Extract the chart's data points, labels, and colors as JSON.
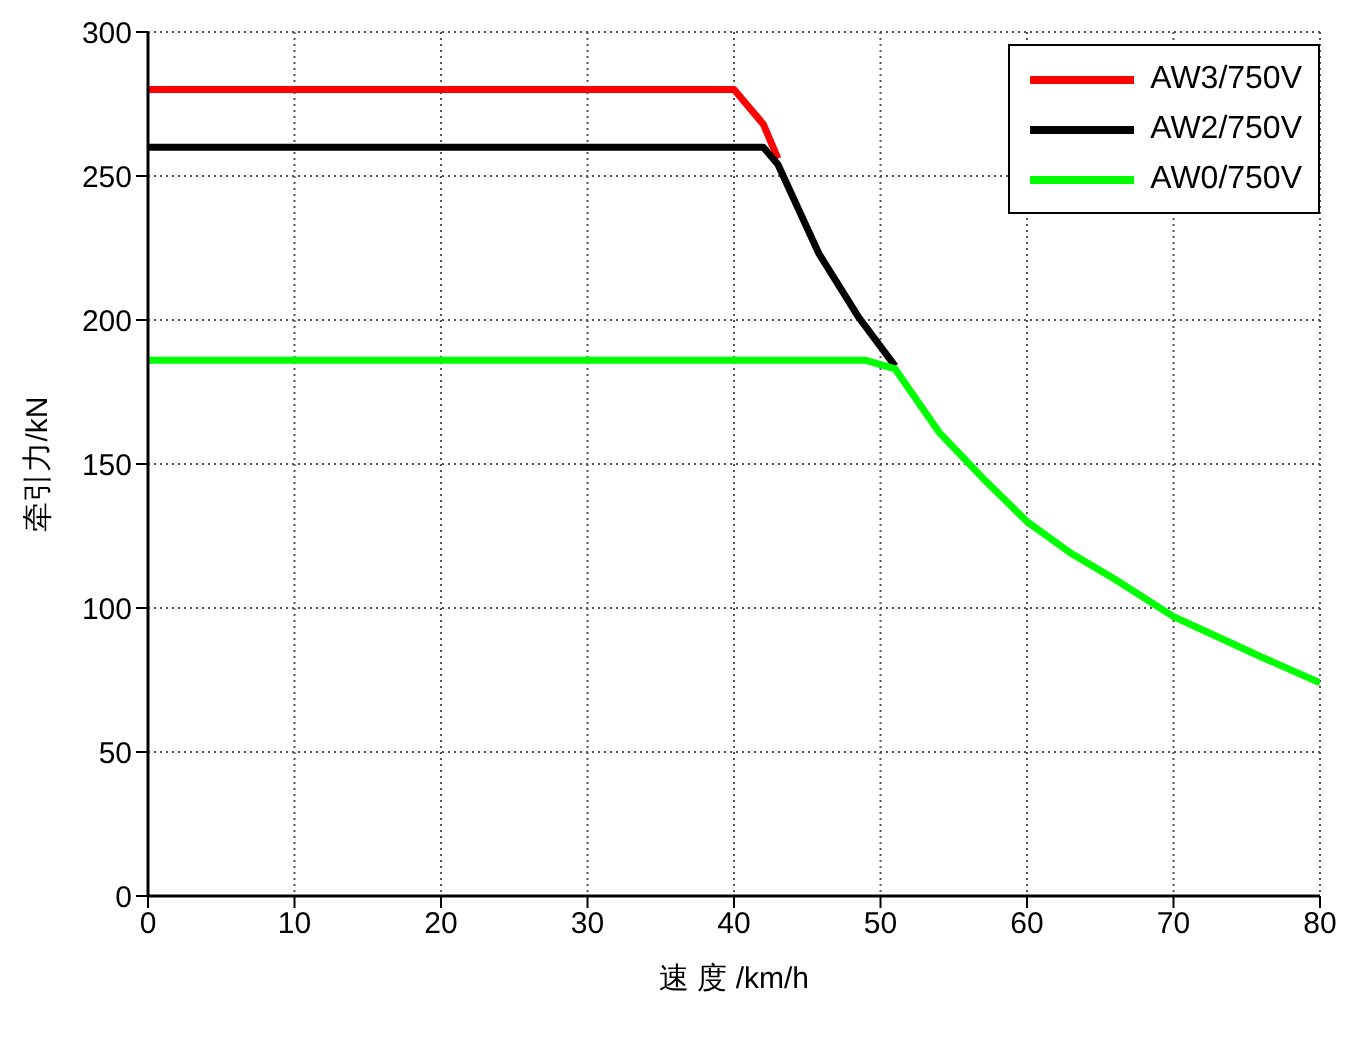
{
  "chart_data": {
    "type": "line",
    "xlabel": "速 度 /km/h",
    "ylabel": "牵引力/kN",
    "xlim": [
      0,
      80
    ],
    "xticks": [
      0,
      10,
      20,
      30,
      40,
      50,
      60,
      70,
      80
    ],
    "ylim": [
      0,
      300
    ],
    "yticks": [
      0,
      50,
      100,
      150,
      200,
      250,
      300
    ],
    "grid": true,
    "legend": "top right",
    "marker": "none",
    "line_style": "solid",
    "series": [
      {
        "name": "AW3/750V",
        "color": "#ff0000",
        "x": [
          0,
          40,
          42,
          43
        ],
        "values": [
          280,
          280,
          268,
          256
        ]
      },
      {
        "name": "AW2/750V",
        "color": "#000000",
        "x": [
          0,
          42,
          43,
          45.8,
          48.5,
          51
        ],
        "values": [
          260,
          260,
          254,
          223,
          201,
          184
        ]
      },
      {
        "name": "AW0/750V",
        "color": "#00ff00",
        "x": [
          0,
          49,
          51,
          54,
          57,
          60,
          63,
          66,
          70,
          73,
          76,
          80
        ],
        "values": [
          186,
          186,
          183,
          161,
          145,
          130,
          119,
          110,
          97,
          90,
          83,
          74
        ]
      }
    ]
  }
}
